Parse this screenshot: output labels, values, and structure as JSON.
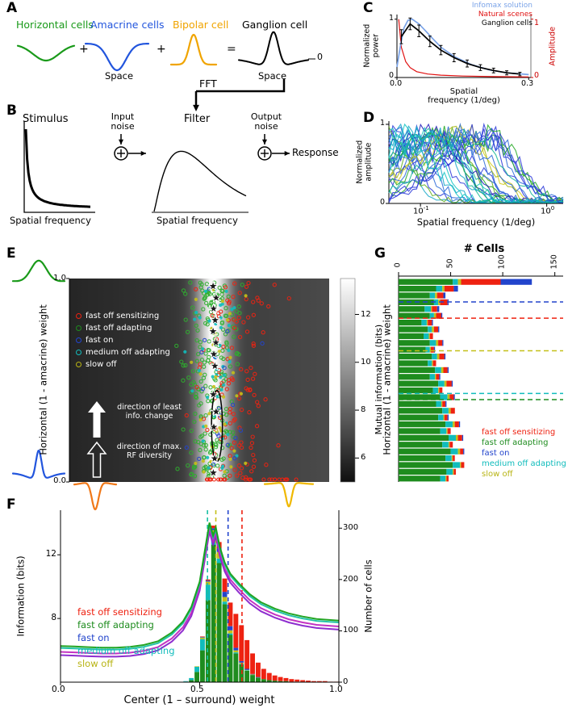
{
  "figure": {
    "bg": "#ffffff",
    "panel_labels": {
      "A": "A",
      "B": "B",
      "C": "C",
      "D": "D",
      "E": "E",
      "F": "F",
      "G": "G"
    }
  },
  "cell_types": [
    {
      "label": "fast off sensitizing",
      "color": "#ee2211"
    },
    {
      "label": "fast off adapting",
      "color": "#1e8c1e"
    },
    {
      "label": "fast on",
      "color": "#2244cc"
    },
    {
      "label": "medium off adapting",
      "color": "#11bcbc"
    },
    {
      "label": "slow off",
      "color": "#b8b414"
    }
  ],
  "panelA": {
    "cells": [
      {
        "name": "Horizontal cells",
        "color": "#1a9a1a"
      },
      {
        "name": "Amacrine cells",
        "color": "#2255dd"
      },
      {
        "name": "Bipolar cell",
        "color": "#f0a400"
      },
      {
        "name": "Ganglion cell",
        "color": "#000000"
      }
    ],
    "plus": "+",
    "equals": "=",
    "zero": "0",
    "space_label": "Space",
    "fft_label": "FFT"
  },
  "panelB": {
    "stimulus_title": "Stimulus",
    "input_noise": "Input noise",
    "filter_title": "Filter",
    "output_noise": "Output noise",
    "response": "Response",
    "freq_label": "Spatial frequency"
  },
  "panelE": {
    "icons": {
      "top_left": "#1a9a1a",
      "bottom_left": "#2255dd",
      "bottom_mid_left": "#f07818",
      "bottom_mid_right": "#f0b800"
    }
  },
  "chart_data": [
    {
      "id": "C",
      "type": "line",
      "xlabel_line1": "Spatial",
      "xlabel_line2": "frequency (1/deg)",
      "ylabel_left": "Normalized power",
      "ylabel_right": "Amplitude",
      "xlim": [
        0,
        0.305
      ],
      "ylim": [
        0,
        1.08
      ],
      "xtick_labels": [
        "0.0",
        "0.3"
      ],
      "xtick_vals": [
        0,
        0.3
      ],
      "ytick_labels_left": [
        "1",
        "0"
      ],
      "ytick_vals_left": [
        1,
        0
      ],
      "ytick_labels_right": [
        "1",
        "0"
      ],
      "ytick_vals_right": [
        1,
        0
      ],
      "legend": [
        {
          "name": "Infomax solution",
          "color": "#7aa3e8"
        },
        {
          "name": "Natural scenes",
          "color": "#e01010"
        },
        {
          "name": "Ganglion cells",
          "color": "#000000"
        }
      ],
      "series": [
        {
          "name": "Natural scenes",
          "color": "#e01010",
          "width": 1.2,
          "x": [
            0.004,
            0.01,
            0.02,
            0.03,
            0.045,
            0.07,
            0.1,
            0.15,
            0.22,
            0.3
          ],
          "y": [
            1.0,
            0.52,
            0.27,
            0.17,
            0.1,
            0.06,
            0.04,
            0.025,
            0.015,
            0.01
          ]
        },
        {
          "name": "Infomax solution",
          "color": "#7aa3e8",
          "width": 1.7,
          "x": [
            0.0,
            0.008,
            0.016,
            0.025,
            0.035,
            0.05,
            0.065,
            0.08,
            0.1,
            0.13,
            0.17,
            0.21,
            0.25,
            0.3
          ],
          "y": [
            0.18,
            0.55,
            0.85,
            0.98,
            1.0,
            0.92,
            0.8,
            0.68,
            0.52,
            0.36,
            0.22,
            0.13,
            0.08,
            0.05
          ]
        },
        {
          "name": "Ganglion cells",
          "color": "#000000",
          "width": 1.7,
          "x": [
            0.01,
            0.03,
            0.05,
            0.075,
            0.1,
            0.13,
            0.16,
            0.19,
            0.22,
            0.25,
            0.28
          ],
          "y": [
            0.7,
            0.92,
            0.8,
            0.62,
            0.47,
            0.34,
            0.24,
            0.17,
            0.12,
            0.08,
            0.06
          ],
          "yerr": [
            0.12,
            0.1,
            0.1,
            0.09,
            0.08,
            0.07,
            0.06,
            0.05,
            0.04,
            0.035,
            0.03
          ]
        }
      ]
    },
    {
      "id": "D",
      "type": "line-ensemble",
      "xlabel": "Spatial frequency (1/deg)",
      "ylabel": "Normalized amplitude",
      "xtick_labels": [
        {
          "base": "10",
          "exp": "-1"
        },
        {
          "base": "10",
          "exp": "0"
        }
      ],
      "xtick_logvals": [
        -1,
        0
      ],
      "ytick_labels": [
        "1",
        "0"
      ],
      "xlog_range": [
        -1.25,
        0.13
      ],
      "n_traces": 34,
      "seed": 11,
      "palette": [
        "#1c18b8",
        "#2a38d8",
        "#2a6ad8",
        "#18a8c8",
        "#16b894",
        "#22a822",
        "#66b01e",
        "#a8b818",
        "#d4cc1c",
        "#14c4c4"
      ]
    },
    {
      "id": "E",
      "type": "heatmap-scatter",
      "ylabel": "Horizontal (1 - amacrine) weight",
      "ytick_labels": [
        "1.0",
        "0.0"
      ],
      "colorbar_label": "Mutual information (bits)",
      "colorbar_ticks": [
        6,
        8,
        10,
        12
      ],
      "info_min": 5,
      "info_max": 13.5,
      "band_center": 0.555,
      "band_sigma": 0.046,
      "base_left": 5.8,
      "base_right": 7.1,
      "peak_info": 13.5,
      "scatter_seed": 23,
      "scatter": [
        {
          "type": "fast off adapting",
          "color": "#2fae2f",
          "n": 235,
          "x_mean": 0.545,
          "x_sd": 0.05,
          "y_min": 0.02,
          "y_max": 0.985,
          "fill": false
        },
        {
          "type": "fast off sensitizing",
          "color": "#ee2211",
          "n": 120,
          "x_mean": 0.64,
          "x_sd": 0.075,
          "y_min": 0.02,
          "y_max": 0.985,
          "fill": false
        },
        {
          "type": "medium off adapting",
          "color": "#11bcbc",
          "n": 45,
          "x_mean": 0.56,
          "x_sd": 0.05,
          "y_min": 0.03,
          "y_max": 0.97,
          "fill": true
        },
        {
          "type": "fast on",
          "color": "#2244cc",
          "n": 20,
          "x_mean": 0.6,
          "x_sd": 0.06,
          "y_min": 0.05,
          "y_max": 0.95,
          "fill": false
        },
        {
          "type": "slow off",
          "color": "#c4c018",
          "n": 38,
          "x_mean": 0.575,
          "x_sd": 0.05,
          "y_min": 0.03,
          "y_max": 0.97,
          "fill": true
        }
      ],
      "red_bottom_row": {
        "color": "#ee2211",
        "n": 26,
        "x_min": 0.52,
        "x_max": 1.0,
        "y": 0.012
      },
      "stars": [
        [
          0.553,
          0.962
        ],
        [
          0.565,
          0.905
        ],
        [
          0.555,
          0.852
        ],
        [
          0.561,
          0.795
        ],
        [
          0.553,
          0.74
        ],
        [
          0.564,
          0.685
        ],
        [
          0.556,
          0.628
        ],
        [
          0.56,
          0.57
        ],
        [
          0.554,
          0.43
        ],
        [
          0.565,
          0.345
        ],
        [
          0.556,
          0.27
        ],
        [
          0.559,
          0.115
        ],
        [
          0.554,
          0.045
        ]
      ],
      "contour": {
        "cx": 0.568,
        "cy": 0.275,
        "rx": 0.021,
        "ry": 0.175
      },
      "arrow1_label_line1": "direction of least",
      "arrow1_label_line2": "info. change",
      "arrow2_label_line1": "direction of max.",
      "arrow2_label_line2": "RF diversity"
    },
    {
      "id": "F",
      "type": "line+stacked-bar",
      "xlabel": "Center (1 – surround) weight",
      "ylabel_left": "Information (bits)",
      "ylabel_right": "Number of cells",
      "xtick_labels": [
        "0.0",
        "0.5",
        "1.0"
      ],
      "xtick_vals": [
        0,
        0.5,
        1
      ],
      "ytick_left_labels": [
        "12",
        "8"
      ],
      "ytick_left_vals": [
        12,
        8
      ],
      "ytick_right_labels": [
        "0",
        "100",
        "200",
        "300"
      ],
      "ytick_right_vals": [
        0,
        100,
        200,
        300
      ],
      "ylim_left": [
        4.0,
        14.8
      ],
      "ylim_right": [
        0,
        335
      ],
      "xlim": [
        0,
        1
      ],
      "info_curves": [
        {
          "color": "#17a017",
          "offset": 0.12
        },
        {
          "color": "#18c0a4",
          "offset": 0.0
        },
        {
          "color": "#c028c0",
          "offset": -0.25
        },
        {
          "color": "#8822cc",
          "offset": -0.45
        }
      ],
      "info_x": [
        0,
        0.05,
        0.1,
        0.15,
        0.2,
        0.25,
        0.3,
        0.35,
        0.4,
        0.44,
        0.47,
        0.5,
        0.52,
        0.535,
        0.548,
        0.558,
        0.572,
        0.59,
        0.61,
        0.64,
        0.68,
        0.72,
        0.77,
        0.82,
        0.87,
        0.92,
        0.96,
        1.0
      ],
      "info_y": [
        6.15,
        6.12,
        6.08,
        6.05,
        6.05,
        6.1,
        6.22,
        6.45,
        7.0,
        7.7,
        8.6,
        10.2,
        12.3,
        13.9,
        13.1,
        13.6,
        12.4,
        11.4,
        10.7,
        10.1,
        9.4,
        8.9,
        8.5,
        8.2,
        8.0,
        7.85,
        7.8,
        7.75
      ],
      "dashed_lines": [
        {
          "color": "#18c0a4",
          "x": 0.528
        },
        {
          "color": "#c4c018",
          "x": 0.558
        },
        {
          "color": "#2244cc",
          "x": 0.602
        },
        {
          "color": "#ee2211",
          "x": 0.652
        }
      ],
      "hist_start": 0.4,
      "hist_bin": 0.02,
      "hist_series": [
        {
          "type": "fast off adapting",
          "color": "#1e8c1e",
          "values": [
            0,
            0,
            1,
            4,
            20,
            62,
            160,
            268,
            232,
            152,
            92,
            56,
            35,
            22,
            14,
            9,
            6,
            4,
            3,
            2,
            2,
            1,
            1,
            1,
            0,
            0,
            0,
            0,
            0,
            0
          ]
        },
        {
          "type": "medium off adapting",
          "color": "#11bcbc",
          "values": [
            0,
            0,
            1,
            4,
            10,
            22,
            30,
            18,
            9,
            5,
            3,
            2,
            1,
            1,
            0,
            0,
            0,
            0,
            0,
            0,
            0,
            0,
            0,
            0,
            0,
            0,
            0,
            0,
            0,
            0
          ]
        },
        {
          "type": "slow off",
          "color": "#c4c018",
          "values": [
            0,
            0,
            0,
            0,
            1,
            3,
            6,
            10,
            13,
            9,
            6,
            4,
            2,
            1,
            1,
            0,
            0,
            0,
            0,
            0,
            0,
            0,
            0,
            0,
            0,
            0,
            0,
            0,
            0,
            0
          ]
        },
        {
          "type": "fast on",
          "color": "#2244cc",
          "values": [
            0,
            0,
            0,
            0,
            0,
            1,
            2,
            4,
            7,
            10,
            8,
            5,
            3,
            2,
            1,
            1,
            0,
            0,
            0,
            0,
            0,
            0,
            0,
            0,
            0,
            0,
            0,
            0,
            0,
            0
          ]
        },
        {
          "type": "fast off sensitizing",
          "color": "#ee2211",
          "values": [
            0,
            0,
            0,
            0,
            0,
            1,
            2,
            5,
            12,
            26,
            46,
            66,
            70,
            56,
            40,
            28,
            20,
            14,
            10,
            8,
            6,
            5,
            4,
            3,
            3,
            2,
            2,
            2,
            1,
            1
          ]
        }
      ]
    },
    {
      "id": "G",
      "type": "stacked-barh",
      "title": "# Cells",
      "ylabel": "Horizontal (1 - amacrine) weight",
      "xtick_labels": [
        "0",
        "50",
        "100",
        "150"
      ],
      "xtick_vals": [
        0,
        50,
        100,
        150
      ],
      "xlim": [
        0,
        158
      ],
      "order": [
        "fast off adapting",
        "medium off adapting",
        "slow off",
        "fast off sensitizing",
        "fast on"
      ],
      "colors": [
        "#1e8c1e",
        "#11bcbc",
        "#c4c018",
        "#ee2211",
        "#2244cc"
      ],
      "bars": [
        [
          52,
          5,
          3,
          38,
          30
        ],
        [
          36,
          6,
          2,
          9,
          4
        ],
        [
          30,
          5,
          2,
          6,
          2
        ],
        [
          34,
          4,
          2,
          7,
          1
        ],
        [
          25,
          6,
          1,
          5,
          2
        ],
        [
          30,
          4,
          2,
          5,
          1
        ],
        [
          22,
          5,
          1,
          4,
          1
        ],
        [
          28,
          4,
          2,
          4,
          1
        ],
        [
          24,
          5,
          1,
          3,
          0
        ],
        [
          30,
          6,
          2,
          4,
          1
        ],
        [
          26,
          4,
          1,
          3,
          1
        ],
        [
          32,
          5,
          2,
          5,
          1
        ],
        [
          28,
          4,
          1,
          3,
          0
        ],
        [
          35,
          6,
          2,
          4,
          1
        ],
        [
          30,
          5,
          1,
          3,
          1
        ],
        [
          38,
          6,
          2,
          5,
          1
        ],
        [
          33,
          5,
          1,
          3,
          0
        ],
        [
          40,
          7,
          2,
          4,
          1
        ],
        [
          36,
          5,
          1,
          3,
          1
        ],
        [
          42,
          6,
          2,
          4,
          0
        ],
        [
          38,
          5,
          1,
          3,
          1
        ],
        [
          45,
          7,
          2,
          4,
          1
        ],
        [
          40,
          6,
          1,
          3,
          0
        ],
        [
          48,
          7,
          2,
          4,
          1
        ],
        [
          42,
          6,
          1,
          3,
          0
        ],
        [
          50,
          7,
          2,
          3,
          1
        ],
        [
          45,
          6,
          1,
          2,
          0
        ],
        [
          52,
          7,
          1,
          3,
          0
        ],
        [
          46,
          6,
          1,
          2,
          0
        ],
        [
          40,
          5,
          1,
          2,
          0
        ]
      ],
      "dashed_lines": [
        {
          "color": "#2244cc",
          "y": 0.885
        },
        {
          "color": "#ee2211",
          "y": 0.805
        },
        {
          "color": "#c4c018",
          "y": 0.645
        },
        {
          "color": "#11bcbc",
          "y": 0.435
        },
        {
          "color": "#1e8c1e",
          "y": 0.405
        }
      ]
    }
  ]
}
